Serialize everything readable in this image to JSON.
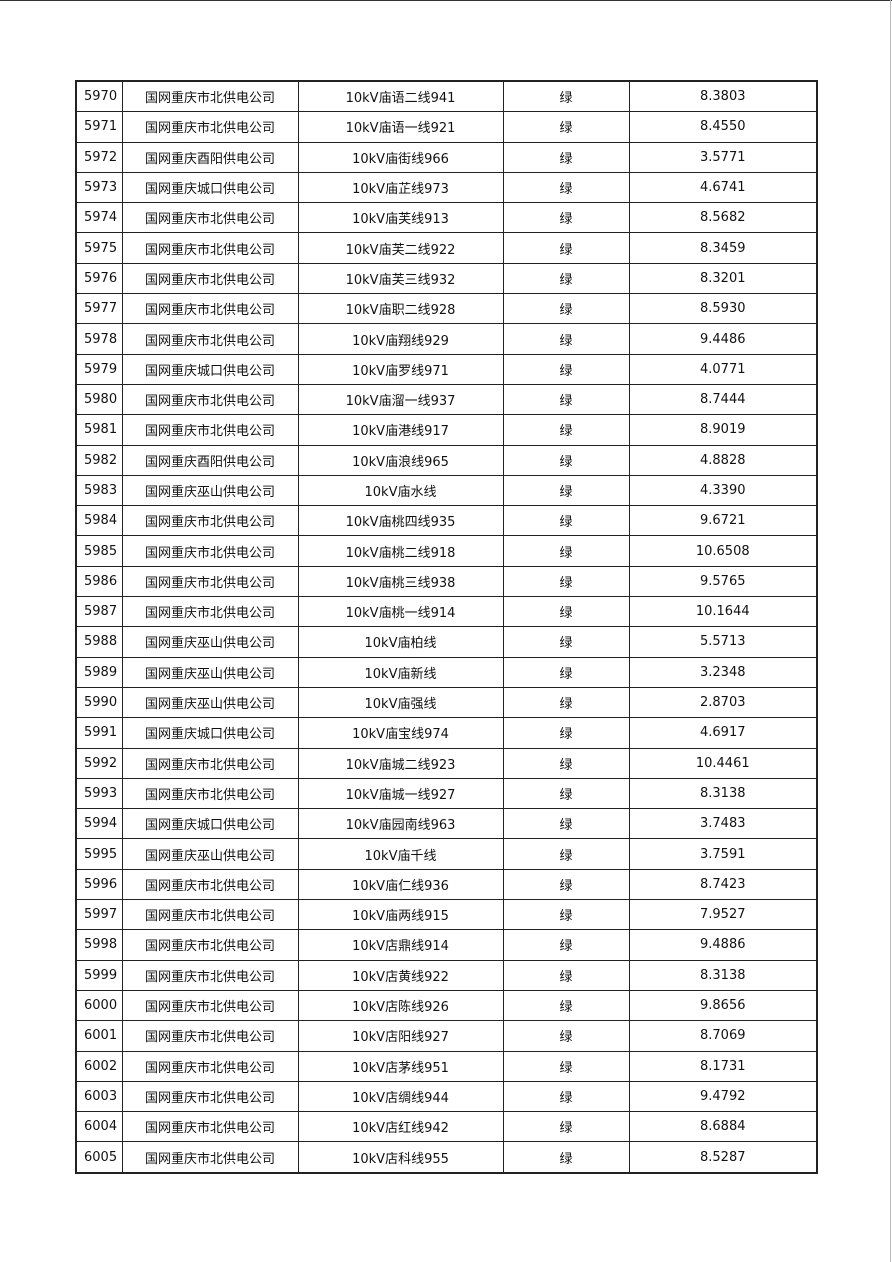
{
  "table": {
    "rows": [
      [
        "5970",
        "国网重庆市北供电公司",
        "10kV庙语二线941",
        "绿",
        "8.3803"
      ],
      [
        "5971",
        "国网重庆市北供电公司",
        "10kV庙语一线921",
        "绿",
        "8.4550"
      ],
      [
        "5972",
        "国网重庆酉阳供电公司",
        "10kV庙街线966",
        "绿",
        "3.5771"
      ],
      [
        "5973",
        "国网重庆城口供电公司",
        "10kV庙芷线973",
        "绿",
        "4.6741"
      ],
      [
        "5974",
        "国网重庆市北供电公司",
        "10kV庙芙线913",
        "绿",
        "8.5682"
      ],
      [
        "5975",
        "国网重庆市北供电公司",
        "10kV庙芙二线922",
        "绿",
        "8.3459"
      ],
      [
        "5976",
        "国网重庆市北供电公司",
        "10kV庙芙三线932",
        "绿",
        "8.3201"
      ],
      [
        "5977",
        "国网重庆市北供电公司",
        "10kV庙职二线928",
        "绿",
        "8.5930"
      ],
      [
        "5978",
        "国网重庆市北供电公司",
        "10kV庙翔线929",
        "绿",
        "9.4486"
      ],
      [
        "5979",
        "国网重庆城口供电公司",
        "10kV庙罗线971",
        "绿",
        "4.0771"
      ],
      [
        "5980",
        "国网重庆市北供电公司",
        "10kV庙溜一线937",
        "绿",
        "8.7444"
      ],
      [
        "5981",
        "国网重庆市北供电公司",
        "10kV庙港线917",
        "绿",
        "8.9019"
      ],
      [
        "5982",
        "国网重庆酉阳供电公司",
        "10kV庙浪线965",
        "绿",
        "4.8828"
      ],
      [
        "5983",
        "国网重庆巫山供电公司",
        "10kV庙水线",
        "绿",
        "4.3390"
      ],
      [
        "5984",
        "国网重庆市北供电公司",
        "10kV庙桃四线935",
        "绿",
        "9.6721"
      ],
      [
        "5985",
        "国网重庆市北供电公司",
        "10kV庙桃二线918",
        "绿",
        "10.6508"
      ],
      [
        "5986",
        "国网重庆市北供电公司",
        "10kV庙桃三线938",
        "绿",
        "9.5765"
      ],
      [
        "5987",
        "国网重庆市北供电公司",
        "10kV庙桃一线914",
        "绿",
        "10.1644"
      ],
      [
        "5988",
        "国网重庆巫山供电公司",
        "10kV庙柏线",
        "绿",
        "5.5713"
      ],
      [
        "5989",
        "国网重庆巫山供电公司",
        "10kV庙新线",
        "绿",
        "3.2348"
      ],
      [
        "5990",
        "国网重庆巫山供电公司",
        "10kV庙强线",
        "绿",
        "2.8703"
      ],
      [
        "5991",
        "国网重庆城口供电公司",
        "10kV庙宝线974",
        "绿",
        "4.6917"
      ],
      [
        "5992",
        "国网重庆市北供电公司",
        "10kV庙城二线923",
        "绿",
        "10.4461"
      ],
      [
        "5993",
        "国网重庆市北供电公司",
        "10kV庙城一线927",
        "绿",
        "8.3138"
      ],
      [
        "5994",
        "国网重庆城口供电公司",
        "10kV庙园南线963",
        "绿",
        "3.7483"
      ],
      [
        "5995",
        "国网重庆巫山供电公司",
        "10kV庙千线",
        "绿",
        "3.7591"
      ],
      [
        "5996",
        "国网重庆市北供电公司",
        "10kV庙仁线936",
        "绿",
        "8.7423"
      ],
      [
        "5997",
        "国网重庆市北供电公司",
        "10kV庙两线915",
        "绿",
        "7.9527"
      ],
      [
        "5998",
        "国网重庆市北供电公司",
        "10kV店鼎线914",
        "绿",
        "9.4886"
      ],
      [
        "5999",
        "国网重庆市北供电公司",
        "10kV店黄线922",
        "绿",
        "8.3138"
      ],
      [
        "6000",
        "国网重庆市北供电公司",
        "10kV店陈线926",
        "绿",
        "9.8656"
      ],
      [
        "6001",
        "国网重庆市北供电公司",
        "10kV店阳线927",
        "绿",
        "8.7069"
      ],
      [
        "6002",
        "国网重庆市北供电公司",
        "10kV店茅线951",
        "绿",
        "8.1731"
      ],
      [
        "6003",
        "国网重庆市北供电公司",
        "10kV店绸线944",
        "绿",
        "9.4792"
      ],
      [
        "6004",
        "国网重庆市北供电公司",
        "10kV店红线942",
        "绿",
        "8.6884"
      ],
      [
        "6005",
        "国网重庆市北供电公司",
        "10kV店科线955",
        "绿",
        "8.5287"
      ]
    ]
  }
}
